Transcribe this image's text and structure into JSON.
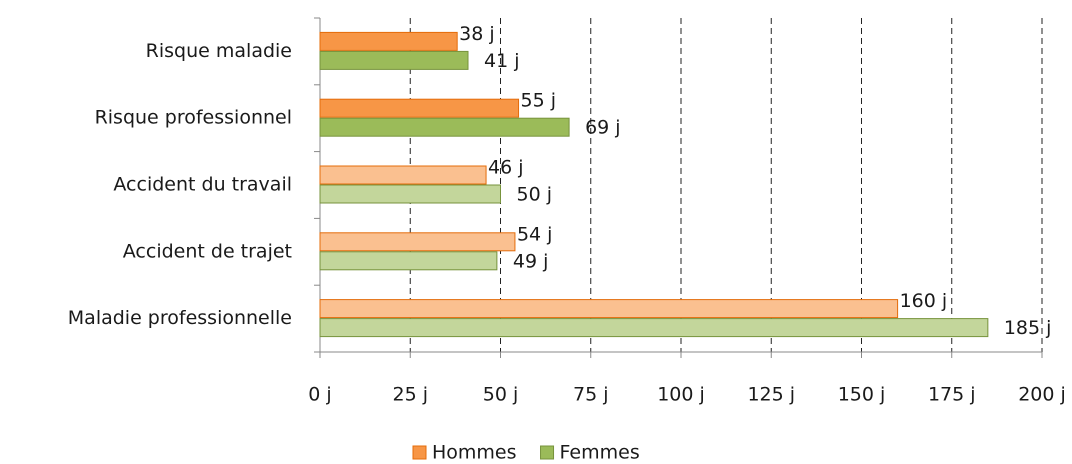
{
  "chart_data": {
    "type": "hbar",
    "categories": [
      "Risque maladie",
      "Risque professionnel",
      "Accident du travail",
      "Accident de trajet",
      "Maladie professionnelle"
    ],
    "series": [
      {
        "name": "Hommes",
        "color": "#f79646",
        "colors": [
          "#f79646",
          "#f79646",
          "#fac090",
          "#fac090",
          "#fac090"
        ],
        "edge": "#e46c0a",
        "values": [
          38,
          55,
          46,
          54,
          160
        ],
        "value_labels": [
          "38 j",
          "55 j",
          "46 j",
          "54 j",
          "160 j"
        ]
      },
      {
        "name": "Femmes",
        "color": "#9bbb59",
        "colors": [
          "#9bbb59",
          "#9bbb59",
          "#c3d69b",
          "#c3d69b",
          "#c3d69b"
        ],
        "edge": "#77933c",
        "values": [
          41,
          69,
          50,
          49,
          185
        ],
        "value_labels": [
          "41 j",
          "69 j",
          "50 j",
          "49 j",
          "185 j"
        ]
      }
    ],
    "xlim": [
      0,
      200
    ],
    "xticks": [
      {
        "value": 0,
        "label": "0 j"
      },
      {
        "value": 25,
        "label": "25 j"
      },
      {
        "value": 50,
        "label": "50 j"
      },
      {
        "value": 75,
        "label": "75 j"
      },
      {
        "value": 100,
        "label": "100 j"
      },
      {
        "value": 125,
        "label": "125 j"
      },
      {
        "value": 150,
        "label": "150 j"
      },
      {
        "value": 175,
        "label": "175 j"
      },
      {
        "value": 200,
        "label": "200 j"
      }
    ],
    "grid": true,
    "legend": "bottom"
  }
}
